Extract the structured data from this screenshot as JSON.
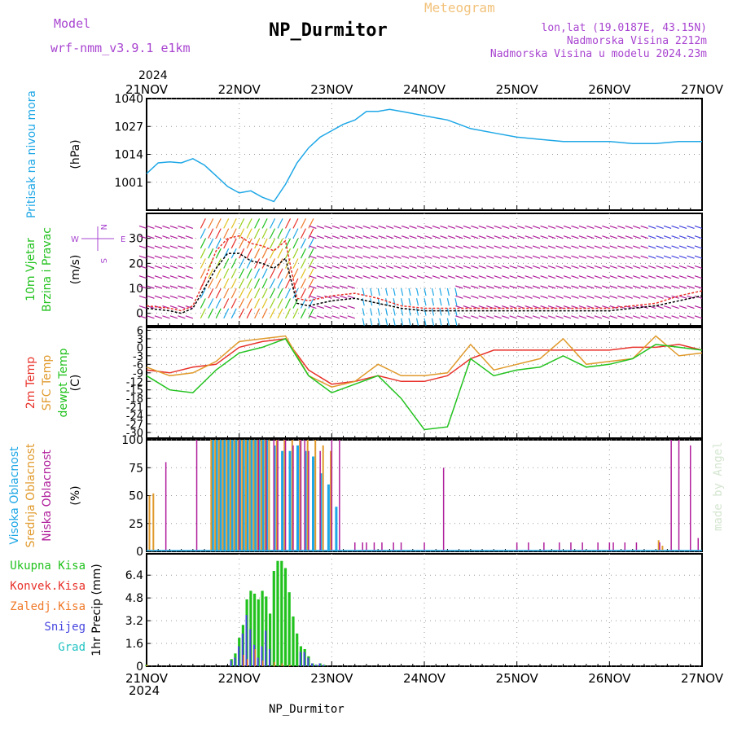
{
  "header": {
    "model_label": "Model",
    "model_value": "wrf-nmm_v3.9.1 e1km",
    "station": "NP_Durmitor",
    "product": "Meteogram",
    "coords": "lon,lat (19.0187E, 43.15N)",
    "elevation": "Nadmorska Visina 2212m",
    "model_elevation": "Nadmorska Visina u modelu 2024.23m",
    "footer_station": "NP_Durmitor",
    "watermark": "made by Angel",
    "year_top": "2024",
    "year_bottom": "2024"
  },
  "time_axis": {
    "labels": [
      "21NOV",
      "22NOV",
      "23NOV",
      "24NOV",
      "25NOV",
      "26NOV",
      "27NOV"
    ],
    "hours_total": 144
  },
  "colors": {
    "pressure": "#1ea7e6",
    "wind_speed": "#000000",
    "wind_gust": "#e8322a",
    "t2m": "#e8322a",
    "tsfc": "#e09a2c",
    "tdew": "#22c21e",
    "high_cloud": "#1ea7e6",
    "mid_cloud": "#e09a2c",
    "low_cloud": "#b0209c",
    "total_precip": "#22c21e",
    "conv_precip": "#e8322a",
    "freezing_rain": "#f07a2a",
    "snow": "#4646e0",
    "hail": "#22c2c2",
    "label_purple": "#a844d0",
    "label_gold": "#f2c27a"
  },
  "chart_data": [
    {
      "type": "line",
      "id": "pressure",
      "ylabel": "(hPa)",
      "side_labels": [
        "Pritisak na nivou mora"
      ],
      "yticks": [
        1001,
        1014,
        1027,
        1040
      ],
      "ylim": [
        988,
        1040
      ],
      "grid": true,
      "series": [
        {
          "name": "Pritisak na nivou mora",
          "x": [
            0,
            3,
            6,
            9,
            12,
            15,
            18,
            21,
            24,
            27,
            30,
            33,
            36,
            39,
            42,
            45,
            48,
            51,
            54,
            57,
            60,
            63,
            66,
            69,
            72,
            75,
            78,
            81,
            84,
            90,
            96,
            102,
            108,
            114,
            120,
            126,
            132,
            138,
            144
          ],
          "y": [
            1005,
            1010,
            1010.5,
            1010,
            1012,
            1009,
            1004,
            999,
            996,
            997,
            994,
            992,
            1000,
            1010,
            1017,
            1022,
            1025,
            1028,
            1030,
            1034,
            1034,
            1035,
            1034,
            1033,
            1032,
            1031,
            1030,
            1028,
            1026,
            1024,
            1022,
            1021,
            1020,
            1020,
            1020,
            1019,
            1019,
            1020,
            1020
          ]
        }
      ]
    },
    {
      "type": "line",
      "id": "wind",
      "ylabel": "(m/s)",
      "side_labels": [
        "10m Vjetar",
        "Brzina i Pravac"
      ],
      "compass_labels": [
        "S",
        "W",
        "E",
        "N"
      ],
      "yticks": [
        0,
        10,
        20,
        30
      ],
      "ylim": [
        -5,
        40
      ],
      "grid": true,
      "series": [
        {
          "name": "Brzina",
          "x": [
            0,
            6,
            9,
            12,
            15,
            18,
            21,
            24,
            27,
            30,
            33,
            36,
            39,
            42,
            48,
            54,
            60,
            66,
            72,
            78,
            84,
            90,
            96,
            102,
            108,
            114,
            120,
            126,
            132,
            138,
            144
          ],
          "y": [
            2,
            1,
            0,
            2,
            10,
            18,
            24,
            24,
            21,
            20,
            18,
            22,
            4,
            3,
            5,
            6,
            4,
            2,
            1,
            1,
            1,
            1,
            1,
            1,
            1,
            1,
            1,
            2,
            3,
            5,
            7
          ]
        },
        {
          "name": "Udar",
          "x": [
            0,
            6,
            9,
            12,
            15,
            18,
            21,
            24,
            27,
            30,
            33,
            36,
            39,
            42,
            48,
            54,
            60,
            66,
            72,
            78,
            84,
            90,
            96,
            102,
            108,
            114,
            120,
            126,
            132,
            138,
            144
          ],
          "y": [
            3,
            2,
            1,
            3,
            13,
            25,
            30,
            31,
            28,
            27,
            25,
            29,
            6,
            5,
            7,
            8,
            6,
            3,
            2,
            2,
            2,
            2,
            2,
            2,
            2,
            2,
            2,
            3,
            4,
            7,
            9
          ]
        }
      ]
    },
    {
      "type": "line",
      "id": "temperature",
      "ylabel": "(C)",
      "side_labels": [
        "2m Temp",
        "SFC Temp",
        "dewpt Temp"
      ],
      "yticks": [
        6,
        3,
        0,
        -3,
        -6,
        -9,
        -12,
        -15,
        -18,
        -21,
        -24,
        -27,
        -30
      ],
      "ylim": [
        -32,
        7
      ],
      "grid": true,
      "series": [
        {
          "name": "2m Temp",
          "x": [
            0,
            6,
            12,
            18,
            24,
            30,
            36,
            42,
            48,
            54,
            60,
            66,
            72,
            78,
            84,
            90,
            96,
            102,
            108,
            114,
            120,
            126,
            132,
            138,
            144
          ],
          "y": [
            -8,
            -9,
            -7,
            -6,
            0,
            2,
            3,
            -8,
            -13,
            -12,
            -10,
            -12,
            -12,
            -10,
            -4,
            -1,
            -1,
            -1,
            -1,
            -1,
            -1,
            0,
            0,
            1,
            -1
          ]
        },
        {
          "name": "SFC Temp",
          "x": [
            0,
            6,
            12,
            18,
            24,
            30,
            36,
            42,
            48,
            54,
            60,
            66,
            72,
            78,
            84,
            90,
            96,
            102,
            108,
            114,
            120,
            126,
            132,
            138,
            144
          ],
          "y": [
            -7,
            -10,
            -9,
            -5,
            2,
            3,
            4,
            -10,
            -14,
            -12,
            -6,
            -10,
            -10,
            -9,
            1,
            -8,
            -6,
            -4,
            3,
            -6,
            -5,
            -4,
            4,
            -3,
            -2
          ]
        },
        {
          "name": "dewpt Temp",
          "x": [
            0,
            6,
            12,
            18,
            24,
            30,
            36,
            42,
            48,
            54,
            60,
            66,
            72,
            78,
            84,
            90,
            96,
            102,
            108,
            114,
            120,
            126,
            132,
            138,
            144
          ],
          "y": [
            -10,
            -15,
            -16,
            -8,
            -2,
            0,
            3,
            -10,
            -16,
            -13,
            -10,
            -18,
            -29,
            -28,
            -4,
            -10,
            -8,
            -7,
            -3,
            -7,
            -6,
            -4,
            1,
            0,
            -1
          ]
        }
      ]
    },
    {
      "type": "bar",
      "id": "clouds",
      "ylabel": "(%)",
      "side_labels": [
        "Visoka Oblacnost",
        "Srednja Oblacnost",
        "Niska Oblacnost"
      ],
      "yticks": [
        0,
        25,
        50,
        75,
        100
      ],
      "ylim": [
        0,
        100
      ],
      "grid": true,
      "series": [
        {
          "name": "Visoka Oblacnost",
          "x": [
            17,
            18,
            19,
            20,
            21,
            22,
            23,
            24,
            25,
            26,
            27,
            28,
            29,
            30,
            31,
            33,
            35,
            37,
            39,
            41,
            43,
            45,
            47,
            49
          ],
          "y": [
            100,
            100,
            100,
            100,
            100,
            100,
            100,
            100,
            100,
            100,
            100,
            100,
            100,
            100,
            100,
            95,
            90,
            90,
            95,
            90,
            85,
            70,
            60,
            40
          ]
        },
        {
          "name": "Srednja Oblacnost",
          "x": [
            1,
            2,
            17,
            18,
            19,
            20,
            21,
            22,
            23,
            24,
            25,
            26,
            27,
            28,
            29,
            30,
            31,
            32,
            34,
            36,
            38,
            40,
            42,
            44,
            46,
            48,
            133,
            134
          ],
          "y": [
            50,
            52,
            100,
            100,
            100,
            100,
            100,
            100,
            100,
            100,
            100,
            100,
            100,
            100,
            100,
            100,
            100,
            100,
            100,
            100,
            100,
            100,
            100,
            100,
            95,
            90,
            10,
            5
          ]
        },
        {
          "name": "Niska Oblacnost",
          "x": [
            5,
            13,
            24,
            29,
            31,
            33,
            34,
            36,
            38,
            40,
            41,
            42,
            45,
            48,
            50,
            54,
            56,
            57,
            59,
            61,
            64,
            66,
            72,
            77,
            96,
            99,
            103,
            107,
            110,
            113,
            117,
            120,
            121,
            124,
            127,
            133,
            136,
            138,
            141,
            143
          ],
          "y": [
            80,
            100,
            100,
            100,
            100,
            100,
            100,
            100,
            95,
            100,
            100,
            90,
            90,
            100,
            100,
            8,
            8,
            8,
            8,
            8,
            8,
            8,
            8,
            75,
            8,
            8,
            8,
            8,
            8,
            8,
            8,
            8,
            8,
            8,
            8,
            8,
            100,
            100,
            95,
            12
          ]
        }
      ]
    },
    {
      "type": "bar",
      "id": "precip",
      "ylabel": "1hr Precip (mm)",
      "side_labels": [
        "Ukupna Kisa",
        "Konvek.Kisa",
        "Zaledj.Kisa",
        "Snijeg",
        "Grad"
      ],
      "yticks": [
        0,
        1.6,
        3.2,
        4.8,
        6.4
      ],
      "ylim": [
        0,
        7.9
      ],
      "grid": true,
      "series": [
        {
          "name": "Ukupna Kisa",
          "x": [
            0,
            22,
            23,
            24,
            25,
            26,
            27,
            28,
            29,
            30,
            31,
            32,
            33,
            34,
            35,
            36,
            37,
            38,
            39,
            40,
            41,
            42,
            43,
            44,
            45,
            46
          ],
          "y": [
            0.1,
            0.5,
            0.9,
            2.0,
            2.9,
            4.7,
            5.3,
            5.1,
            4.7,
            5.3,
            4.9,
            3.7,
            6.7,
            7.4,
            7.4,
            6.9,
            5.2,
            3.5,
            2.3,
            1.4,
            1.2,
            0.7,
            0.2,
            0.1,
            0.2,
            0.1
          ]
        },
        {
          "name": "Snijeg",
          "x": [
            22,
            23,
            24,
            25,
            26,
            27,
            28,
            29,
            30,
            31,
            32,
            33,
            34,
            35,
            36,
            37,
            38,
            39,
            40,
            41,
            42,
            43,
            44,
            45,
            46
          ],
          "y": [
            0.4,
            0.6,
            1.4,
            2.3,
            3.6,
            2.6,
            1.5,
            0.6,
            1.4,
            2.5,
            1.2,
            0,
            0,
            0,
            0,
            0,
            0,
            0,
            1.0,
            1.0,
            0.6,
            0.2,
            0.1,
            0.2,
            0.1
          ]
        },
        {
          "name": "Zaledj.Kisa",
          "x": [
            0,
            25,
            26,
            28,
            30,
            33,
            35,
            37
          ],
          "y": [
            0.1,
            0.8,
            0.5,
            1.2,
            0.4,
            0.3,
            0.2,
            0.1
          ]
        }
      ]
    }
  ]
}
